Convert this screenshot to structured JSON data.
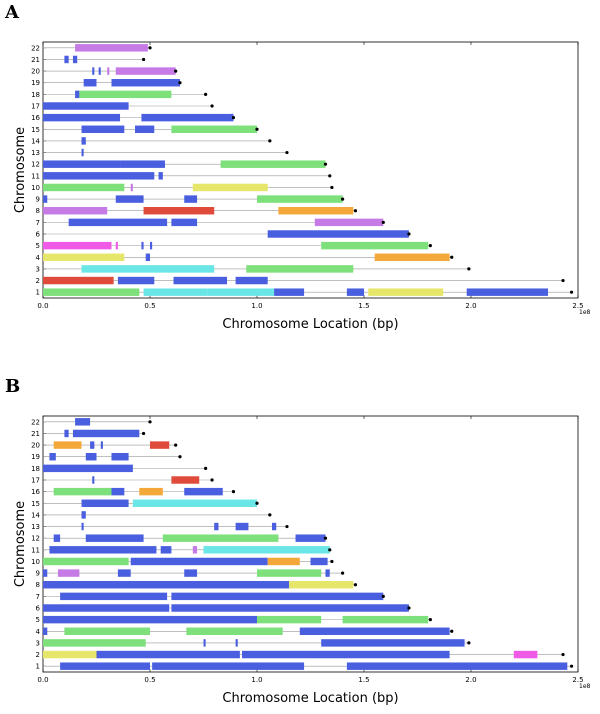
{
  "colors": {
    "blue": "#4a5fe0",
    "green": "#7de07a",
    "cyan": "#6ae6e6",
    "yellow": "#e6e66a",
    "orange": "#f5a83a",
    "red": "#e04a3a",
    "purple": "#c67ae6",
    "magenta": "#ef5ae6",
    "black": "#000000",
    "line": "#999999"
  },
  "chart_data": [
    {
      "panel_label": "A",
      "type": "chromosome-track",
      "xlabel": "Chromosome Location (bp)",
      "ylabel": "Chromosome",
      "xlim": [
        0,
        250000000
      ],
      "x_ticks": [
        "0.0",
        "0.5",
        "1.0",
        "1.5",
        "2.0",
        "2.5"
      ],
      "x_exponent": "1e8",
      "chromosomes": [
        {
          "label": "1",
          "length": 247,
          "segments": [
            [
              0,
              45,
              "green"
            ],
            [
              47,
              77,
              "cyan"
            ],
            [
              77,
              108,
              "cyan"
            ],
            [
              108,
              122,
              "blue"
            ],
            [
              142,
              150,
              "blue"
            ],
            [
              152,
              187,
              "yellow"
            ],
            [
              198,
              236,
              "blue"
            ]
          ]
        },
        {
          "label": "2",
          "length": 243,
          "segments": [
            [
              0,
              33,
              "red"
            ],
            [
              35,
              52,
              "blue"
            ],
            [
              61,
              86,
              "blue"
            ],
            [
              90,
              105,
              "blue"
            ]
          ]
        },
        {
          "label": "3",
          "length": 199,
          "segments": [
            [
              18,
              80,
              "cyan"
            ],
            [
              95,
              145,
              "green"
            ]
          ]
        },
        {
          "label": "4",
          "length": 191,
          "segments": [
            [
              0,
              38,
              "yellow"
            ],
            [
              48,
              50,
              "blue"
            ],
            [
              155,
              190,
              "orange"
            ]
          ]
        },
        {
          "label": "5",
          "length": 181,
          "segments": [
            [
              0,
              32,
              "magenta"
            ],
            [
              34,
              35,
              "magenta"
            ],
            [
              46,
              47,
              "blue"
            ],
            [
              50,
              51,
              "blue"
            ],
            [
              130,
              180,
              "green"
            ]
          ]
        },
        {
          "label": "6",
          "length": 171,
          "segments": [
            [
              105,
              171,
              "blue"
            ]
          ]
        },
        {
          "label": "7",
          "length": 159,
          "segments": [
            [
              12,
              58,
              "blue"
            ],
            [
              60,
              72,
              "blue"
            ],
            [
              127,
              159,
              "purple"
            ]
          ]
        },
        {
          "label": "8",
          "length": 146,
          "segments": [
            [
              0,
              30,
              "purple"
            ],
            [
              47,
              80,
              "red"
            ],
            [
              110,
              145,
              "orange"
            ]
          ]
        },
        {
          "label": "9",
          "length": 140,
          "segments": [
            [
              0,
              2,
              "blue"
            ],
            [
              34,
              47,
              "blue"
            ],
            [
              66,
              72,
              "blue"
            ],
            [
              100,
              140,
              "green"
            ]
          ]
        },
        {
          "label": "10",
          "length": 135,
          "segments": [
            [
              0,
              38,
              "green"
            ],
            [
              41,
              42,
              "purple"
            ],
            [
              70,
              105,
              "yellow"
            ]
          ]
        },
        {
          "label": "11",
          "length": 134,
          "segments": [
            [
              0,
              52,
              "blue"
            ],
            [
              54,
              56,
              "blue"
            ]
          ]
        },
        {
          "label": "12",
          "length": 132,
          "segments": [
            [
              0,
              36,
              "blue"
            ],
            [
              36,
              57,
              "blue"
            ],
            [
              83,
              132,
              "green"
            ]
          ]
        },
        {
          "label": "13",
          "length": 114,
          "segments": [
            [
              18,
              19,
              "blue"
            ]
          ]
        },
        {
          "label": "14",
          "length": 106,
          "segments": [
            [
              18,
              20,
              "blue"
            ]
          ]
        },
        {
          "label": "15",
          "length": 100,
          "segments": [
            [
              18,
              38,
              "blue"
            ],
            [
              43,
              52,
              "blue"
            ],
            [
              60,
              100,
              "green"
            ]
          ]
        },
        {
          "label": "16",
          "length": 89,
          "segments": [
            [
              0,
              36,
              "blue"
            ],
            [
              46,
              89,
              "blue"
            ]
          ]
        },
        {
          "label": "17",
          "length": 79,
          "segments": [
            [
              0,
              40,
              "blue"
            ]
          ]
        },
        {
          "label": "18",
          "length": 76,
          "segments": [
            [
              15,
              17,
              "blue"
            ],
            [
              17,
              60,
              "green"
            ]
          ]
        },
        {
          "label": "19",
          "length": 64,
          "segments": [
            [
              19,
              25,
              "blue"
            ],
            [
              32,
              64,
              "blue"
            ]
          ]
        },
        {
          "label": "20",
          "length": 62,
          "segments": [
            [
              23,
              24,
              "blue"
            ],
            [
              26,
              27,
              "blue"
            ],
            [
              30,
              31,
              "purple"
            ],
            [
              34,
              62,
              "purple"
            ]
          ]
        },
        {
          "label": "21",
          "length": 47,
          "segments": [
            [
              10,
              12,
              "blue"
            ],
            [
              14,
              16,
              "blue"
            ]
          ]
        },
        {
          "label": "22",
          "length": 50,
          "segments": [
            [
              15,
              49,
              "purple"
            ]
          ]
        }
      ]
    },
    {
      "panel_label": "B",
      "type": "chromosome-track",
      "xlabel": "Chromosome Location (bp)",
      "ylabel": "Chromosome",
      "xlim": [
        0,
        250000000
      ],
      "x_ticks": [
        "0.0",
        "0.5",
        "1.0",
        "1.5",
        "2.0",
        "2.5"
      ],
      "x_exponent": "1e8",
      "chromosomes": [
        {
          "label": "1",
          "length": 247,
          "segments": [
            [
              8,
              50,
              "blue"
            ],
            [
              51,
              122,
              "blue"
            ],
            [
              142,
              245,
              "blue"
            ]
          ]
        },
        {
          "label": "2",
          "length": 243,
          "segments": [
            [
              0,
              25,
              "yellow"
            ],
            [
              25,
              92,
              "blue"
            ],
            [
              93,
              190,
              "blue"
            ],
            [
              220,
              231,
              "magenta"
            ]
          ]
        },
        {
          "label": "3",
          "length": 199,
          "segments": [
            [
              0,
              48,
              "green"
            ],
            [
              75,
              76,
              "blue"
            ],
            [
              90,
              91,
              "blue"
            ],
            [
              130,
              197,
              "blue"
            ]
          ]
        },
        {
          "label": "4",
          "length": 191,
          "segments": [
            [
              0,
              2,
              "blue"
            ],
            [
              10,
              50,
              "green"
            ],
            [
              67,
              112,
              "green"
            ],
            [
              120,
              190,
              "blue"
            ]
          ]
        },
        {
          "label": "5",
          "length": 181,
          "segments": [
            [
              0,
              100,
              "blue"
            ],
            [
              100,
              130,
              "green"
            ],
            [
              140,
              180,
              "green"
            ]
          ]
        },
        {
          "label": "6",
          "length": 171,
          "segments": [
            [
              0,
              59,
              "blue"
            ],
            [
              60,
              171,
              "blue"
            ]
          ]
        },
        {
          "label": "7",
          "length": 159,
          "segments": [
            [
              8,
              58,
              "blue"
            ],
            [
              60,
              159,
              "blue"
            ]
          ]
        },
        {
          "label": "8",
          "length": 146,
          "segments": [
            [
              0,
              115,
              "blue"
            ],
            [
              115,
              145,
              "yellow"
            ]
          ]
        },
        {
          "label": "9",
          "length": 140,
          "segments": [
            [
              0,
              2,
              "blue"
            ],
            [
              7,
              17,
              "purple"
            ],
            [
              35,
              41,
              "blue"
            ],
            [
              66,
              72,
              "blue"
            ],
            [
              100,
              130,
              "green"
            ],
            [
              132,
              134,
              "blue"
            ]
          ]
        },
        {
          "label": "10",
          "length": 135,
          "segments": [
            [
              0,
              40,
              "green"
            ],
            [
              41,
              105,
              "blue"
            ],
            [
              105,
              120,
              "orange"
            ],
            [
              125,
              133,
              "blue"
            ]
          ]
        },
        {
          "label": "11",
          "length": 134,
          "segments": [
            [
              3,
              53,
              "blue"
            ],
            [
              55,
              60,
              "blue"
            ],
            [
              70,
              72,
              "purple"
            ],
            [
              75,
              134,
              "cyan"
            ]
          ]
        },
        {
          "label": "12",
          "length": 132,
          "segments": [
            [
              5,
              8,
              "blue"
            ],
            [
              20,
              47,
              "blue"
            ],
            [
              56,
              110,
              "green"
            ],
            [
              118,
              132,
              "blue"
            ]
          ]
        },
        {
          "label": "13",
          "length": 114,
          "segments": [
            [
              18,
              19,
              "blue"
            ],
            [
              80,
              82,
              "blue"
            ],
            [
              90,
              96,
              "blue"
            ],
            [
              107,
              109,
              "blue"
            ]
          ]
        },
        {
          "label": "14",
          "length": 106,
          "segments": [
            [
              18,
              20,
              "blue"
            ]
          ]
        },
        {
          "label": "15",
          "length": 100,
          "segments": [
            [
              18,
              40,
              "blue"
            ],
            [
              42,
              100,
              "cyan"
            ]
          ]
        },
        {
          "label": "16",
          "length": 89,
          "segments": [
            [
              5,
              32,
              "green"
            ],
            [
              32,
              38,
              "blue"
            ],
            [
              45,
              56,
              "orange"
            ],
            [
              66,
              84,
              "blue"
            ]
          ]
        },
        {
          "label": "17",
          "length": 79,
          "segments": [
            [
              23,
              24,
              "blue"
            ],
            [
              60,
              73,
              "red"
            ]
          ]
        },
        {
          "label": "18",
          "length": 76,
          "segments": [
            [
              0,
              42,
              "blue"
            ]
          ]
        },
        {
          "label": "19",
          "length": 64,
          "segments": [
            [
              3,
              6,
              "blue"
            ],
            [
              20,
              25,
              "blue"
            ],
            [
              32,
              40,
              "blue"
            ]
          ]
        },
        {
          "label": "20",
          "length": 62,
          "segments": [
            [
              5,
              18,
              "orange"
            ],
            [
              22,
              24,
              "blue"
            ],
            [
              27,
              28,
              "blue"
            ],
            [
              50,
              59,
              "red"
            ]
          ]
        },
        {
          "label": "21",
          "length": 47,
          "segments": [
            [
              10,
              12,
              "blue"
            ],
            [
              14,
              45,
              "blue"
            ]
          ]
        },
        {
          "label": "22",
          "length": 50,
          "segments": [
            [
              15,
              22,
              "blue"
            ]
          ]
        }
      ]
    }
  ]
}
